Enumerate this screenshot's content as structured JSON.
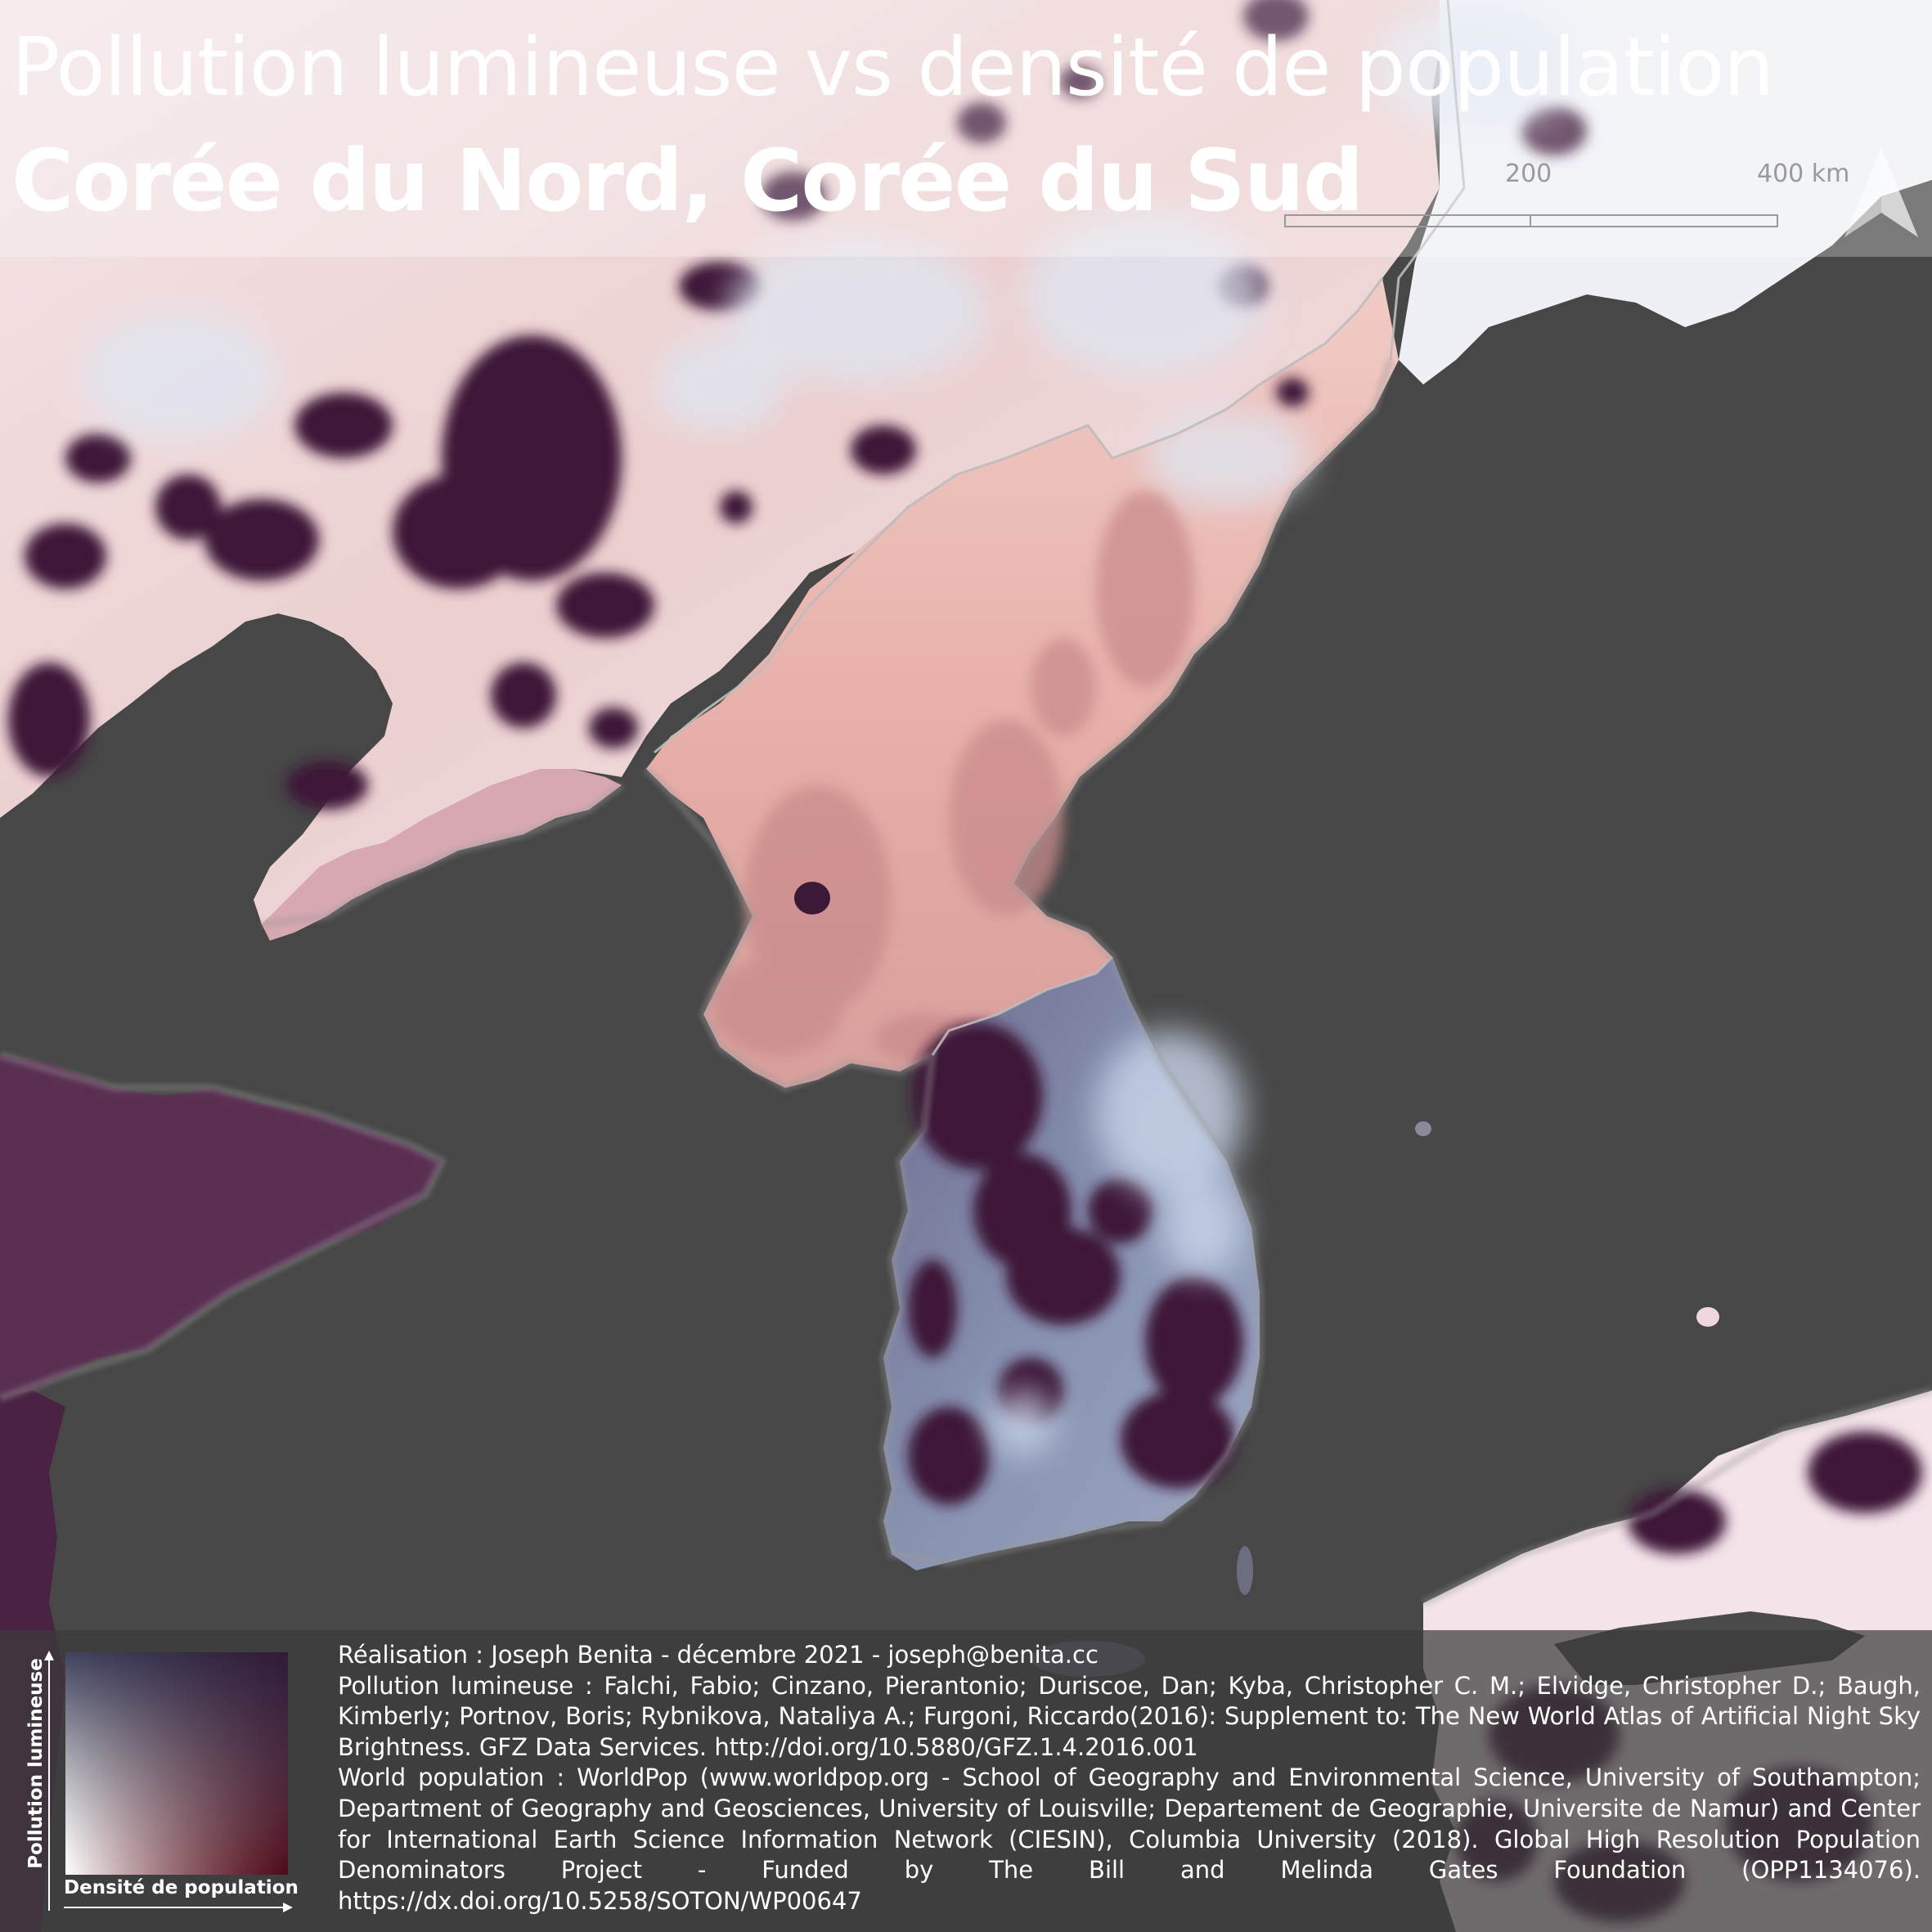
{
  "title": {
    "line1": "Pollution lumineuse vs densité de population",
    "line2": "Corée du Nord, Corée du Sud"
  },
  "scale": {
    "labels": [
      "200",
      "400 km"
    ]
  },
  "north_arrow_icon": "north-arrow-icon",
  "legend": {
    "y_label": "Pollution lumineuse",
    "x_label": "Densité de population",
    "colors": {
      "low_low": "#ffffff",
      "high_light": "#46203f",
      "high_density": "#7c0d1f",
      "mid_light": "#6e7f9c"
    }
  },
  "credits": [
    "Réalisation : Joseph Benita - décembre 2021 - joseph@benita.cc",
    "Pollution lumineuse : Falchi, Fabio; Cinzano, Pierantonio; Duriscoe, Dan; Kyba, Christopher C. M.; Elvidge, Christopher D.; Baugh, Kimberly; Portnov, Boris; Rybnikova, Nataliya A.; Furgoni, Riccardo(2016): Supplement to: The New World Atlas of Artificial Night Sky Brightness. GFZ Data Services. http://doi.org/10.5880/GFZ.1.4.2016.001",
    "World population : WorldPop (www.worldpop.org - School of Geography and Environmental Science, University of Southampton; Department of Geography and Geosciences, University of Louisville; Departement de Geographie, Universite de Namur) and Center for International Earth Science Information Network (CIESIN), Columbia University (2018). Global High Resolution Population Denominators Project - Funded by The Bill and Melinda Gates Foundation (OPP1134076). https://dx.doi.org/10.5258/SOTON/WP00647"
  ],
  "colors": {
    "sea": "#474747",
    "north_korea": "#e9b3ad",
    "south_korea": "#8a96b3",
    "china_plain": "#f0dede",
    "china_city": "#3d1a3a",
    "japan": "#f6e9ee",
    "border": "#bdbdbd"
  }
}
